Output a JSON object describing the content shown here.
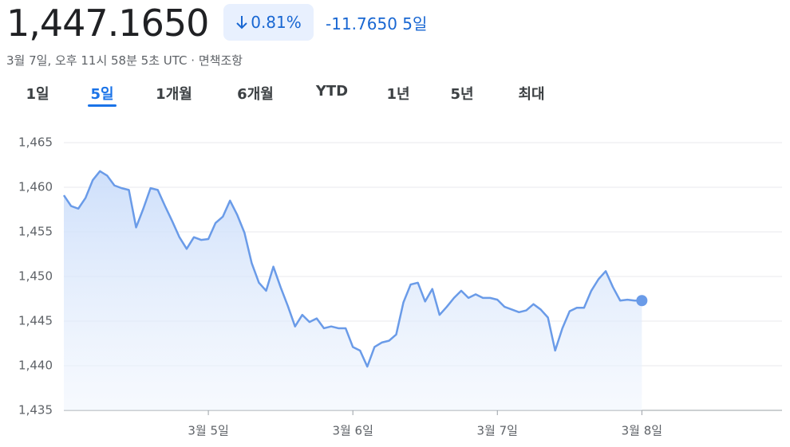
{
  "header": {
    "price": "1,447.1650",
    "change_percent": "0.81%",
    "change": "-11.7650",
    "period": "5일",
    "timestamp": "3월 7일, 오후 11시 58분 5초 UTC",
    "disclaimer": "면책조항",
    "tabs": [
      "1일",
      "5일",
      "1개월",
      "6개월",
      "YTD",
      "1년",
      "5년",
      "최대"
    ],
    "selected_tab": 1
  },
  "chart_data": {
    "type": "line",
    "color": "#6a9be8",
    "grid": true,
    "x": [
      4,
      4.05,
      4.1,
      4.15,
      4.2,
      4.25,
      4.3,
      4.35,
      4.4,
      4.45,
      4.5,
      4.55,
      4.6,
      4.65,
      4.7,
      4.75,
      4.8,
      4.85,
      4.9,
      4.95,
      5,
      5.05,
      5.1,
      5.15,
      5.2,
      5.25,
      5.3,
      5.35,
      5.4,
      5.45,
      5.5,
      5.55,
      5.6,
      5.65,
      5.7,
      5.75,
      5.8,
      5.85,
      5.9,
      5.95,
      6,
      6.05,
      6.1,
      6.15,
      6.2,
      6.25,
      6.3,
      6.35,
      6.4,
      6.45,
      6.5,
      6.55,
      6.6,
      6.65,
      6.7,
      6.75,
      6.8,
      6.85,
      6.9,
      6.95,
      7,
      7.05,
      7.1,
      7.15,
      7.2,
      7.25,
      7.3,
      7.35,
      7.4,
      7.45,
      7.5,
      7.55,
      7.6,
      7.65,
      7.7,
      7.75,
      7.8,
      7.85,
      7.9,
      7.95,
      8
    ],
    "values": [
      1459.1,
      1457.9,
      1457.6,
      1458.8,
      1460.8,
      1461.8,
      1461.3,
      1460.2,
      1459.9,
      1459.7,
      1455.5,
      1457.6,
      1459.9,
      1459.7,
      1457.9,
      1456.2,
      1454.4,
      1453.1,
      1454.4,
      1454.1,
      1454.2,
      1456.0,
      1456.7,
      1458.5,
      1456.9,
      1454.9,
      1451.5,
      1449.3,
      1448.4,
      1451.1,
      1448.8,
      1446.7,
      1444.4,
      1445.7,
      1444.9,
      1445.3,
      1444.2,
      1444.4,
      1444.2,
      1444.2,
      1442.1,
      1441.7,
      1439.9,
      1442.1,
      1442.6,
      1442.8,
      1443.5,
      1447.1,
      1449.1,
      1449.3,
      1447.2,
      1448.6,
      1445.7,
      1446.6,
      1447.6,
      1448.4,
      1447.6,
      1448.0,
      1447.6,
      1447.6,
      1447.4,
      1446.6,
      1446.3,
      1446.0,
      1446.2,
      1446.9,
      1446.3,
      1445.4,
      1441.7,
      1444.2,
      1446.1,
      1446.5,
      1446.5,
      1448.4,
      1449.7,
      1450.6,
      1448.8,
      1447.3,
      1447.4,
      1447.3,
      1447.3
    ],
    "xlim": [
      4,
      8.97
    ],
    "xticks": [
      {
        "value": 5,
        "label": "3월 5일"
      },
      {
        "value": 6,
        "label": "3월 6일"
      },
      {
        "value": 7,
        "label": "3월 7일"
      },
      {
        "value": 8,
        "label": "3월 8일"
      }
    ],
    "ylim": [
      1435,
      1465
    ],
    "yticks": [
      {
        "value": 1435,
        "label": "1,435"
      },
      {
        "value": 1440,
        "label": "1,440"
      },
      {
        "value": 1445,
        "label": "1,445"
      },
      {
        "value": 1450,
        "label": "1,450"
      },
      {
        "value": 1455,
        "label": "1,455"
      },
      {
        "value": 1460,
        "label": "1,460"
      },
      {
        "value": 1465,
        "label": "1,465"
      }
    ]
  }
}
